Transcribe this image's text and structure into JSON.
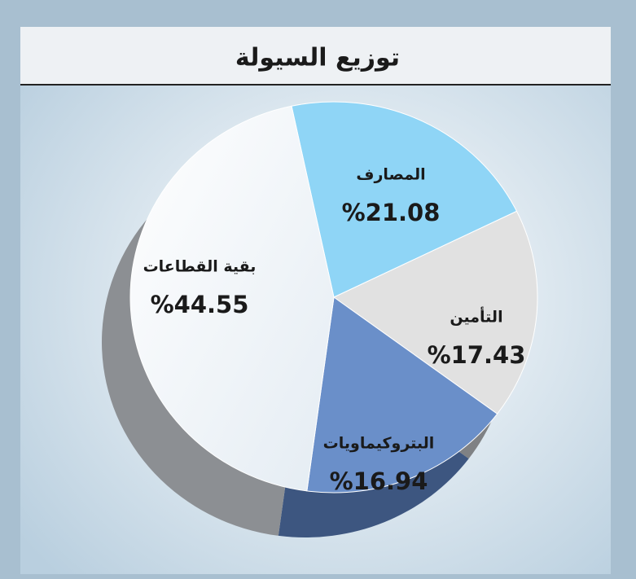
{
  "chart_data": {
    "type": "pie",
    "title": "توزيع السيولة",
    "categories": [
      "المصارف",
      "التأمين",
      "البتروكيماويات",
      "بقية القطاعات"
    ],
    "values": [
      21.08,
      17.43,
      16.94,
      44.55
    ],
    "value_labels": [
      "%21.08",
      "%17.43",
      "%16.94",
      "%44.55"
    ],
    "colors": [
      "#8fd5f6",
      "#e1e1e1",
      "#6a8fc9",
      "#f3f6f9"
    ]
  }
}
